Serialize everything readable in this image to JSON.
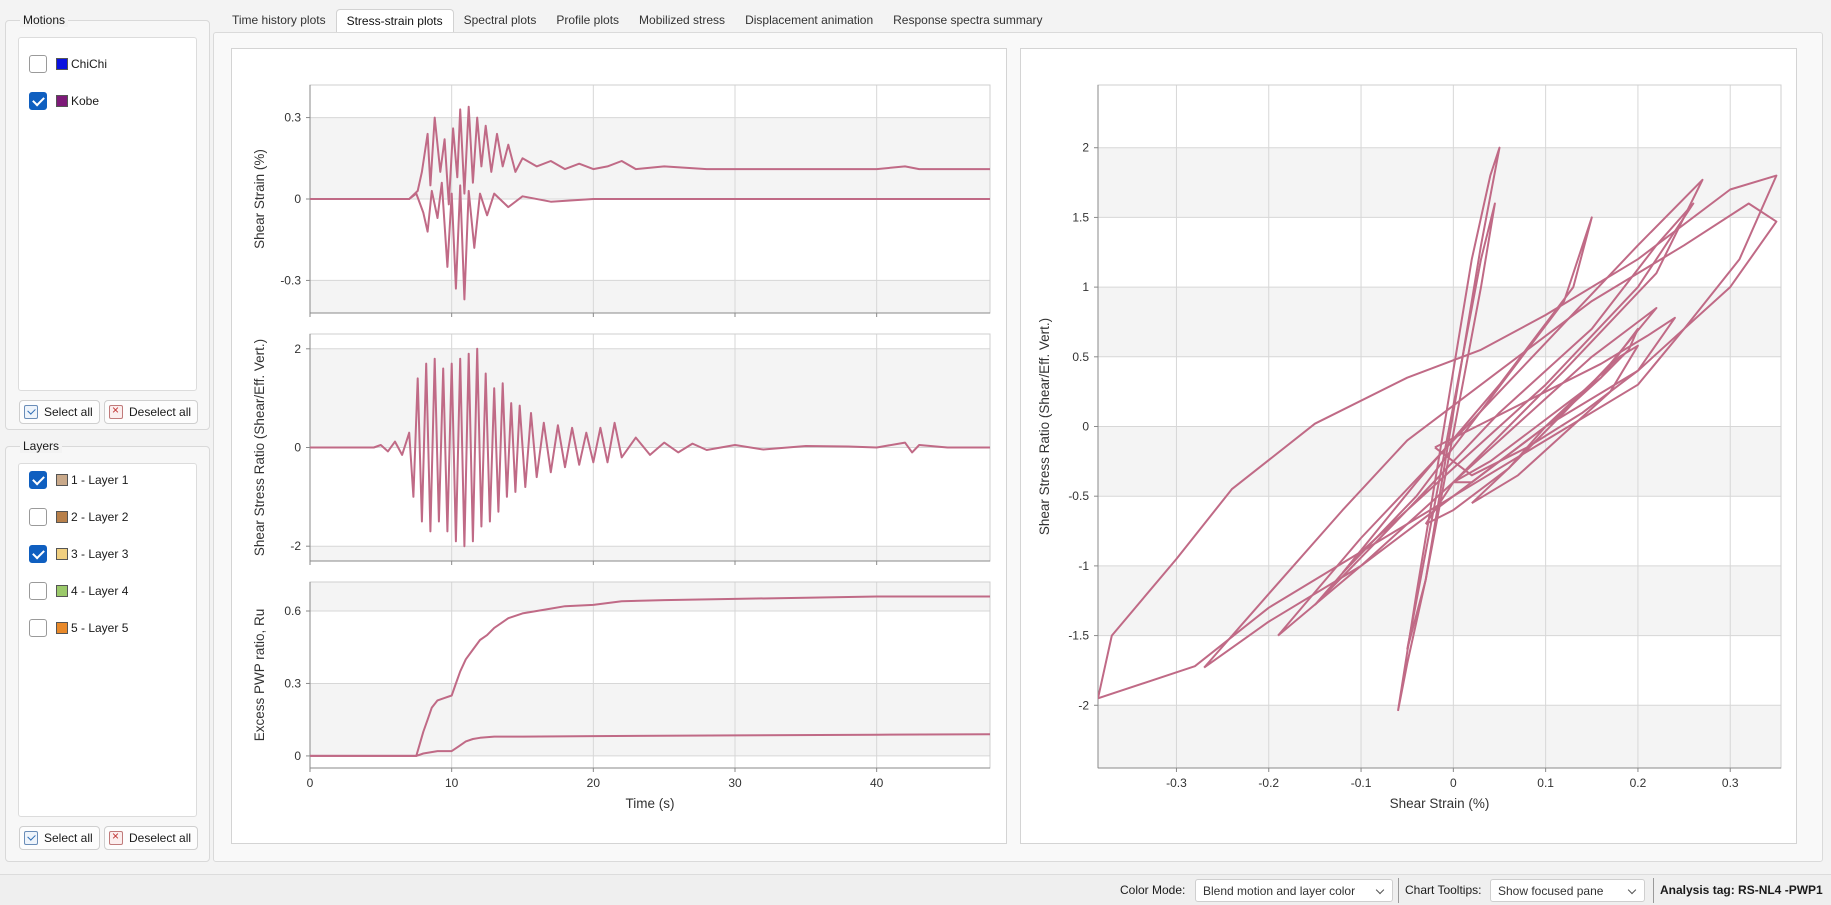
{
  "tabs": [
    {
      "label": "Time history plots"
    },
    {
      "label": "Stress-strain plots",
      "active": true
    },
    {
      "label": "Spectral plots"
    },
    {
      "label": "Profile plots"
    },
    {
      "label": "Mobilized stress"
    },
    {
      "label": "Displacement animation"
    },
    {
      "label": "Response spectra summary"
    }
  ],
  "motions": {
    "title": "Motions",
    "items": [
      {
        "label": "ChiChi",
        "checked": false,
        "color": "#0a12e0"
      },
      {
        "label": "Kobe",
        "checked": true,
        "color": "#7d1a78"
      }
    ],
    "select_all": "Select all",
    "deselect_all": "Deselect all"
  },
  "layers": {
    "title": "Layers",
    "items": [
      {
        "label": "1 - Layer 1",
        "checked": true,
        "color": "#c9a98a"
      },
      {
        "label": "2 - Layer 2",
        "checked": false,
        "color": "#b8804a"
      },
      {
        "label": "3 - Layer 3",
        "checked": true,
        "color": "#f0cf80"
      },
      {
        "label": "4 - Layer 4",
        "checked": false,
        "color": "#9bc96a"
      },
      {
        "label": "5 - Layer 5",
        "checked": false,
        "color": "#e8892a"
      }
    ],
    "select_all": "Select all",
    "deselect_all": "Deselect all"
  },
  "series_color": "#c06a86",
  "chart_data": [
    {
      "type": "line",
      "ylabel": "Shear Strain (%)",
      "xlim": [
        0,
        48
      ],
      "ylim": [
        -0.42,
        0.42
      ],
      "yticks": [
        -0.3,
        0,
        0.3
      ],
      "ytick_labels": [
        "-0.3",
        "0",
        "0.3"
      ],
      "xticks": [
        0,
        10,
        20,
        30,
        40
      ],
      "series": [
        {
          "x": [
            0,
            7,
            7.6,
            7.9,
            8.3,
            8.5,
            8.8,
            9.2,
            9.5,
            9.8,
            10.1,
            10.4,
            10.6,
            10.9,
            11.2,
            11.5,
            11.8,
            12.1,
            12.4,
            12.8,
            13.2,
            13.6,
            14,
            14.5,
            15,
            16,
            17,
            18,
            19,
            20,
            21,
            22,
            23,
            25,
            28,
            30,
            35,
            40,
            42,
            43,
            45,
            48
          ],
          "y": [
            0,
            0,
            0.03,
            0.1,
            0.24,
            0.05,
            0.3,
            0.1,
            0.22,
            -0.02,
            0.26,
            0.08,
            0.33,
            0.02,
            0.34,
            0.06,
            0.3,
            0.12,
            0.27,
            0.1,
            0.24,
            0.12,
            0.2,
            0.1,
            0.15,
            0.12,
            0.14,
            0.11,
            0.13,
            0.11,
            0.12,
            0.14,
            0.11,
            0.12,
            0.11,
            0.11,
            0.11,
            0.11,
            0.12,
            0.11,
            0.11,
            0.11
          ]
        },
        {
          "x": [
            0,
            7,
            7.5,
            8,
            8.3,
            8.6,
            9,
            9.3,
            9.7,
            10,
            10.3,
            10.6,
            10.9,
            11.2,
            11.6,
            12,
            12.5,
            13,
            14,
            15,
            17,
            20,
            25,
            30,
            40,
            48
          ],
          "y": [
            0,
            0,
            0.02,
            -0.05,
            -0.12,
            0.03,
            -0.07,
            0.06,
            -0.25,
            0.02,
            -0.33,
            0.05,
            -0.37,
            0.03,
            -0.18,
            0.02,
            -0.06,
            0.02,
            -0.03,
            0.01,
            -0.01,
            0,
            0,
            0,
            0,
            0
          ]
        }
      ]
    },
    {
      "type": "line",
      "ylabel": "Shear Stress Ratio (Shear/Eff. Vert.)",
      "xlim": [
        0,
        48
      ],
      "ylim": [
        -2.3,
        2.3
      ],
      "yticks": [
        -2,
        0,
        2
      ],
      "ytick_labels": [
        "-2",
        "0",
        "2"
      ],
      "xticks": [
        0,
        10,
        20,
        30,
        40
      ],
      "series": [
        {
          "x": [
            0,
            4.5,
            5,
            5.5,
            6,
            6.5,
            7,
            7.3,
            7.6,
            7.9,
            8.2,
            8.5,
            8.8,
            9.1,
            9.4,
            9.7,
            10,
            10.3,
            10.6,
            10.9,
            11.2,
            11.5,
            11.8,
            12.1,
            12.4,
            12.7,
            13,
            13.3,
            13.6,
            13.9,
            14.2,
            14.5,
            14.8,
            15.2,
            15.6,
            16,
            16.5,
            17,
            17.5,
            18,
            18.5,
            19,
            19.5,
            20,
            20.5,
            21,
            21.5,
            22,
            23,
            24,
            25,
            26,
            27,
            28,
            30,
            32,
            35,
            38,
            40,
            42,
            42.5,
            43,
            45,
            48
          ],
          "y": [
            0,
            0,
            0.05,
            -0.08,
            0.12,
            -0.15,
            0.3,
            -1.0,
            1.4,
            -1.5,
            1.7,
            -1.7,
            1.8,
            -1.5,
            1.6,
            -1.7,
            1.7,
            -1.9,
            1.8,
            -2.0,
            1.9,
            -1.9,
            2.0,
            -1.6,
            1.5,
            -1.5,
            1.2,
            -1.3,
            1.3,
            -1.0,
            0.9,
            -0.9,
            0.85,
            -0.8,
            0.7,
            -0.6,
            0.5,
            -0.5,
            0.45,
            -0.4,
            0.4,
            -0.35,
            0.3,
            -0.3,
            0.4,
            -0.3,
            0.5,
            -0.2,
            0.2,
            -0.15,
            0.1,
            -0.1,
            0.08,
            -0.05,
            0.05,
            -0.04,
            0.03,
            0.02,
            0,
            0.1,
            -0.1,
            0.05,
            0,
            0
          ]
        }
      ]
    },
    {
      "type": "line",
      "ylabel": "Excess PWP ratio, Ru",
      "xlabel": "Time (s)",
      "xlim": [
        0,
        48
      ],
      "ylim": [
        -0.05,
        0.72
      ],
      "yticks": [
        0,
        0.3,
        0.6
      ],
      "ytick_labels": [
        "0",
        "0.3",
        "0.6"
      ],
      "xticks": [
        0,
        10,
        20,
        30,
        40
      ],
      "xtick_labels": [
        "0",
        "10",
        "20",
        "30",
        "40"
      ],
      "series": [
        {
          "x": [
            0,
            7.5,
            7.7,
            8,
            8.3,
            8.6,
            9,
            9.5,
            10,
            10.3,
            10.6,
            11,
            11.5,
            12,
            12.5,
            13,
            13.5,
            14,
            15,
            16,
            17,
            18,
            20,
            22,
            25,
            30,
            35,
            40,
            48
          ],
          "y": [
            0,
            0,
            0.04,
            0.1,
            0.15,
            0.2,
            0.23,
            0.24,
            0.25,
            0.3,
            0.35,
            0.4,
            0.44,
            0.48,
            0.5,
            0.53,
            0.55,
            0.57,
            0.59,
            0.6,
            0.61,
            0.62,
            0.625,
            0.64,
            0.645,
            0.65,
            0.655,
            0.66,
            0.66
          ]
        },
        {
          "x": [
            0,
            7.5,
            8,
            9,
            10,
            10.5,
            11,
            11.5,
            12,
            13,
            15,
            20,
            30,
            40,
            48
          ],
          "y": [
            0,
            0,
            0.01,
            0.02,
            0.02,
            0.04,
            0.06,
            0.07,
            0.075,
            0.08,
            0.08,
            0.082,
            0.085,
            0.088,
            0.09
          ]
        }
      ]
    },
    {
      "type": "line",
      "xlabel": "Shear Strain (%)",
      "ylabel": "Shear Stress Ratio (Shear/Eff. Vert.)",
      "xlim": [
        -0.385,
        0.355
      ],
      "ylim": [
        -2.45,
        2.45
      ],
      "xticks": [
        -0.3,
        -0.2,
        -0.1,
        0,
        0.1,
        0.2,
        0.3
      ],
      "xtick_labels": [
        "-0.3",
        "-0.2",
        "-0.1",
        "0",
        "0.1",
        "0.2",
        "0.3"
      ],
      "yticks": [
        -2,
        -1.5,
        -1,
        -0.5,
        0,
        0.5,
        1,
        1.5,
        2
      ],
      "ytick_labels": [
        "-2",
        "-1.5",
        "-1",
        "-0.5",
        "0",
        "0.5",
        "1",
        "1.5",
        "2"
      ],
      "series": [
        {
          "x": [
            -0.385,
            -0.37,
            -0.3,
            -0.24,
            -0.15,
            -0.05,
            0.03,
            0.1,
            0.2,
            0.3,
            0.35,
            0.31,
            0.25,
            0.2,
            0.1,
            0.0,
            -0.1,
            -0.2,
            -0.28,
            -0.385
          ],
          "y": [
            -1.95,
            -1.5,
            -0.95,
            -0.45,
            0.02,
            0.35,
            0.55,
            0.8,
            1.2,
            1.7,
            1.8,
            1.2,
            0.7,
            0.3,
            -0.1,
            -0.5,
            -0.9,
            -1.3,
            -1.72,
            -1.95
          ]
        },
        {
          "x": [
            -0.27,
            -0.2,
            -0.12,
            -0.05,
            0.05,
            0.15,
            0.25,
            0.32,
            0.35,
            0.3,
            0.2,
            0.1,
            0.0,
            -0.1,
            -0.2,
            -0.27
          ],
          "y": [
            -1.73,
            -1.2,
            -0.6,
            -0.1,
            0.4,
            0.9,
            1.3,
            1.6,
            1.47,
            1.0,
            0.4,
            0.0,
            -0.5,
            -1.0,
            -1.4,
            -1.73
          ]
        },
        {
          "x": [
            -0.19,
            -0.1,
            0.0,
            0.1,
            0.2,
            0.27,
            0.22,
            0.12,
            0.0,
            -0.1,
            -0.19
          ],
          "y": [
            -1.5,
            -0.8,
            -0.1,
            0.6,
            1.3,
            1.77,
            1.1,
            0.4,
            -0.4,
            -1.0,
            -1.5
          ]
        },
        {
          "x": [
            -0.15,
            -0.05,
            0.05,
            0.15,
            0.22,
            0.26,
            0.2,
            0.1,
            0.0,
            -0.1,
            -0.15
          ],
          "y": [
            -1.28,
            -0.6,
            0.1,
            0.7,
            1.3,
            1.6,
            1.0,
            0.3,
            -0.3,
            -0.9,
            -1.28
          ]
        },
        {
          "x": [
            -0.12,
            -0.04,
            0.04,
            0.12,
            0.15,
            0.13,
            0.05,
            -0.04,
            -0.12
          ],
          "y": [
            -1.05,
            -0.5,
            0.2,
            0.9,
            1.5,
            1.0,
            0.3,
            -0.4,
            -1.05
          ]
        },
        {
          "x": [
            -0.06,
            -0.04,
            -0.02,
            0.0,
            0.02,
            0.04,
            0.05,
            0.03,
            0.01,
            -0.01,
            -0.03,
            -0.05,
            -0.06
          ],
          "y": [
            -2.04,
            -1.2,
            -0.4,
            0.4,
            1.2,
            1.8,
            2.0,
            1.3,
            0.5,
            -0.3,
            -1.1,
            -1.7,
            -2.04
          ]
        },
        {
          "x": [
            -0.05,
            -0.03,
            -0.01,
            0.01,
            0.03,
            0.045,
            0.03,
            0.01,
            -0.01,
            -0.03,
            -0.05
          ],
          "y": [
            -1.6,
            -0.9,
            -0.2,
            0.5,
            1.2,
            1.6,
            1.0,
            0.3,
            -0.4,
            -1.1,
            -1.6
          ]
        },
        {
          "x": [
            -0.03,
            0.0,
            0.05,
            0.1,
            0.15,
            0.2,
            0.22,
            0.17,
            0.12,
            0.06,
            0.0,
            -0.03
          ],
          "y": [
            -0.7,
            -0.4,
            -0.1,
            0.2,
            0.5,
            0.75,
            0.85,
            0.45,
            0.1,
            -0.3,
            -0.6,
            -0.7
          ]
        },
        {
          "x": [
            0.0,
            0.04,
            0.08,
            0.12,
            0.16,
            0.19,
            0.2,
            0.16,
            0.11,
            0.06,
            0.02,
            0.0
          ],
          "y": [
            -0.4,
            -0.25,
            -0.05,
            0.15,
            0.35,
            0.55,
            0.7,
            0.35,
            0.05,
            -0.2,
            -0.4,
            -0.4
          ]
        },
        {
          "x": [
            0.02,
            0.06,
            0.1,
            0.14,
            0.18,
            0.2,
            0.17,
            0.12,
            0.07,
            0.02
          ],
          "y": [
            -0.55,
            -0.3,
            0.0,
            0.25,
            0.5,
            0.58,
            0.25,
            -0.05,
            -0.35,
            -0.55
          ]
        },
        {
          "x": [
            -0.02,
            0.04,
            0.1,
            0.16,
            0.21,
            0.24,
            0.2,
            0.14,
            0.08,
            0.02,
            -0.02
          ],
          "y": [
            -0.15,
            0.05,
            0.25,
            0.45,
            0.65,
            0.78,
            0.4,
            0.1,
            -0.15,
            -0.35,
            -0.15
          ]
        }
      ]
    }
  ],
  "status": {
    "color_mode_label": "Color Mode:",
    "color_mode_value": "Blend motion and layer color",
    "tooltips_label": "Chart Tooltips:",
    "tooltips_value": "Show focused pane",
    "analysis_tag": "Analysis tag: RS-NL4 -PWP1"
  }
}
